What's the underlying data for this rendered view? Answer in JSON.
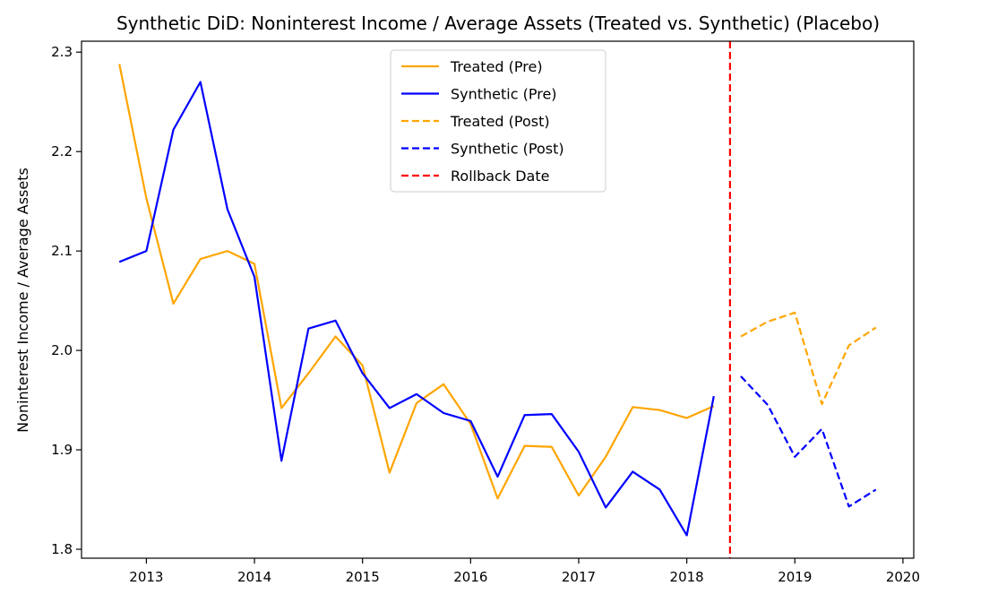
{
  "chart_data": {
    "type": "line",
    "title": "Synthetic DiD: Noninterest Income / Average Assets (Treated vs. Synthetic) (Placebo)",
    "xlabel": "",
    "ylabel": "Noninterest Income / Average Assets",
    "xlim": [
      2012.4,
      2020.1
    ],
    "ylim": [
      1.791,
      2.311
    ],
    "xticks": [
      2013,
      2014,
      2015,
      2016,
      2017,
      2018,
      2019,
      2020
    ],
    "xtick_labels": [
      "2013",
      "2014",
      "2015",
      "2016",
      "2017",
      "2018",
      "2019",
      "2020"
    ],
    "yticks": [
      1.8,
      1.9,
      2.0,
      2.1,
      2.2,
      2.3
    ],
    "ytick_labels": [
      "1.8",
      "1.9",
      "2.0",
      "2.1",
      "2.2",
      "2.3"
    ],
    "legend_position": "top-center",
    "rollback_date": 2018.4,
    "series": [
      {
        "name": "Treated (Pre)",
        "color": "#ffa500",
        "style": "solid",
        "x": [
          2012.75,
          2013.0,
          2013.25,
          2013.5,
          2013.75,
          2014.0,
          2014.25,
          2014.5,
          2014.75,
          2015.0,
          2015.25,
          2015.5,
          2015.75,
          2016.0,
          2016.25,
          2016.5,
          2016.75,
          2017.0,
          2017.25,
          2017.5,
          2017.75,
          2018.0,
          2018.25
        ],
        "y": [
          2.288,
          2.153,
          2.047,
          2.092,
          2.1,
          2.087,
          1.942,
          1.977,
          2.014,
          1.985,
          1.877,
          1.947,
          1.966,
          1.926,
          1.851,
          1.904,
          1.903,
          1.854,
          1.893,
          1.943,
          1.94,
          1.932,
          1.944
        ]
      },
      {
        "name": "Synthetic (Pre)",
        "color": "#0000ff",
        "style": "solid",
        "x": [
          2012.75,
          2013.0,
          2013.25,
          2013.5,
          2013.75,
          2014.0,
          2014.25,
          2014.5,
          2014.75,
          2015.0,
          2015.25,
          2015.5,
          2015.75,
          2016.0,
          2016.25,
          2016.5,
          2016.75,
          2017.0,
          2017.25,
          2017.5,
          2017.75,
          2018.0,
          2018.25
        ],
        "y": [
          2.089,
          2.1,
          2.222,
          2.27,
          2.142,
          2.074,
          1.889,
          2.022,
          2.03,
          1.977,
          1.942,
          1.956,
          1.937,
          1.929,
          1.873,
          1.935,
          1.936,
          1.898,
          1.842,
          1.878,
          1.86,
          1.814,
          1.954
        ]
      },
      {
        "name": "Treated (Post)",
        "color": "#ffa500",
        "style": "dashed",
        "x": [
          2018.5,
          2018.75,
          2019.0,
          2019.25,
          2019.5,
          2019.75
        ],
        "y": [
          2.014,
          2.029,
          2.038,
          1.946,
          2.005,
          2.023
        ]
      },
      {
        "name": "Synthetic (Post)",
        "color": "#0000ff",
        "style": "dashed",
        "x": [
          2018.5,
          2018.75,
          2019.0,
          2019.25,
          2019.5,
          2019.75
        ],
        "y": [
          1.974,
          1.945,
          1.893,
          1.921,
          1.843,
          1.86
        ]
      }
    ],
    "vline": {
      "name": "Rollback Date",
      "color": "#ff0000",
      "style": "dashed"
    },
    "legend": [
      {
        "label": "Treated (Pre)",
        "color": "#ffa500",
        "style": "solid"
      },
      {
        "label": "Synthetic (Pre)",
        "color": "#0000ff",
        "style": "solid"
      },
      {
        "label": "Treated (Post)",
        "color": "#ffa500",
        "style": "dashed"
      },
      {
        "label": "Synthetic (Post)",
        "color": "#0000ff",
        "style": "dashed"
      },
      {
        "label": "Rollback Date",
        "color": "#ff0000",
        "style": "dashed"
      }
    ]
  }
}
